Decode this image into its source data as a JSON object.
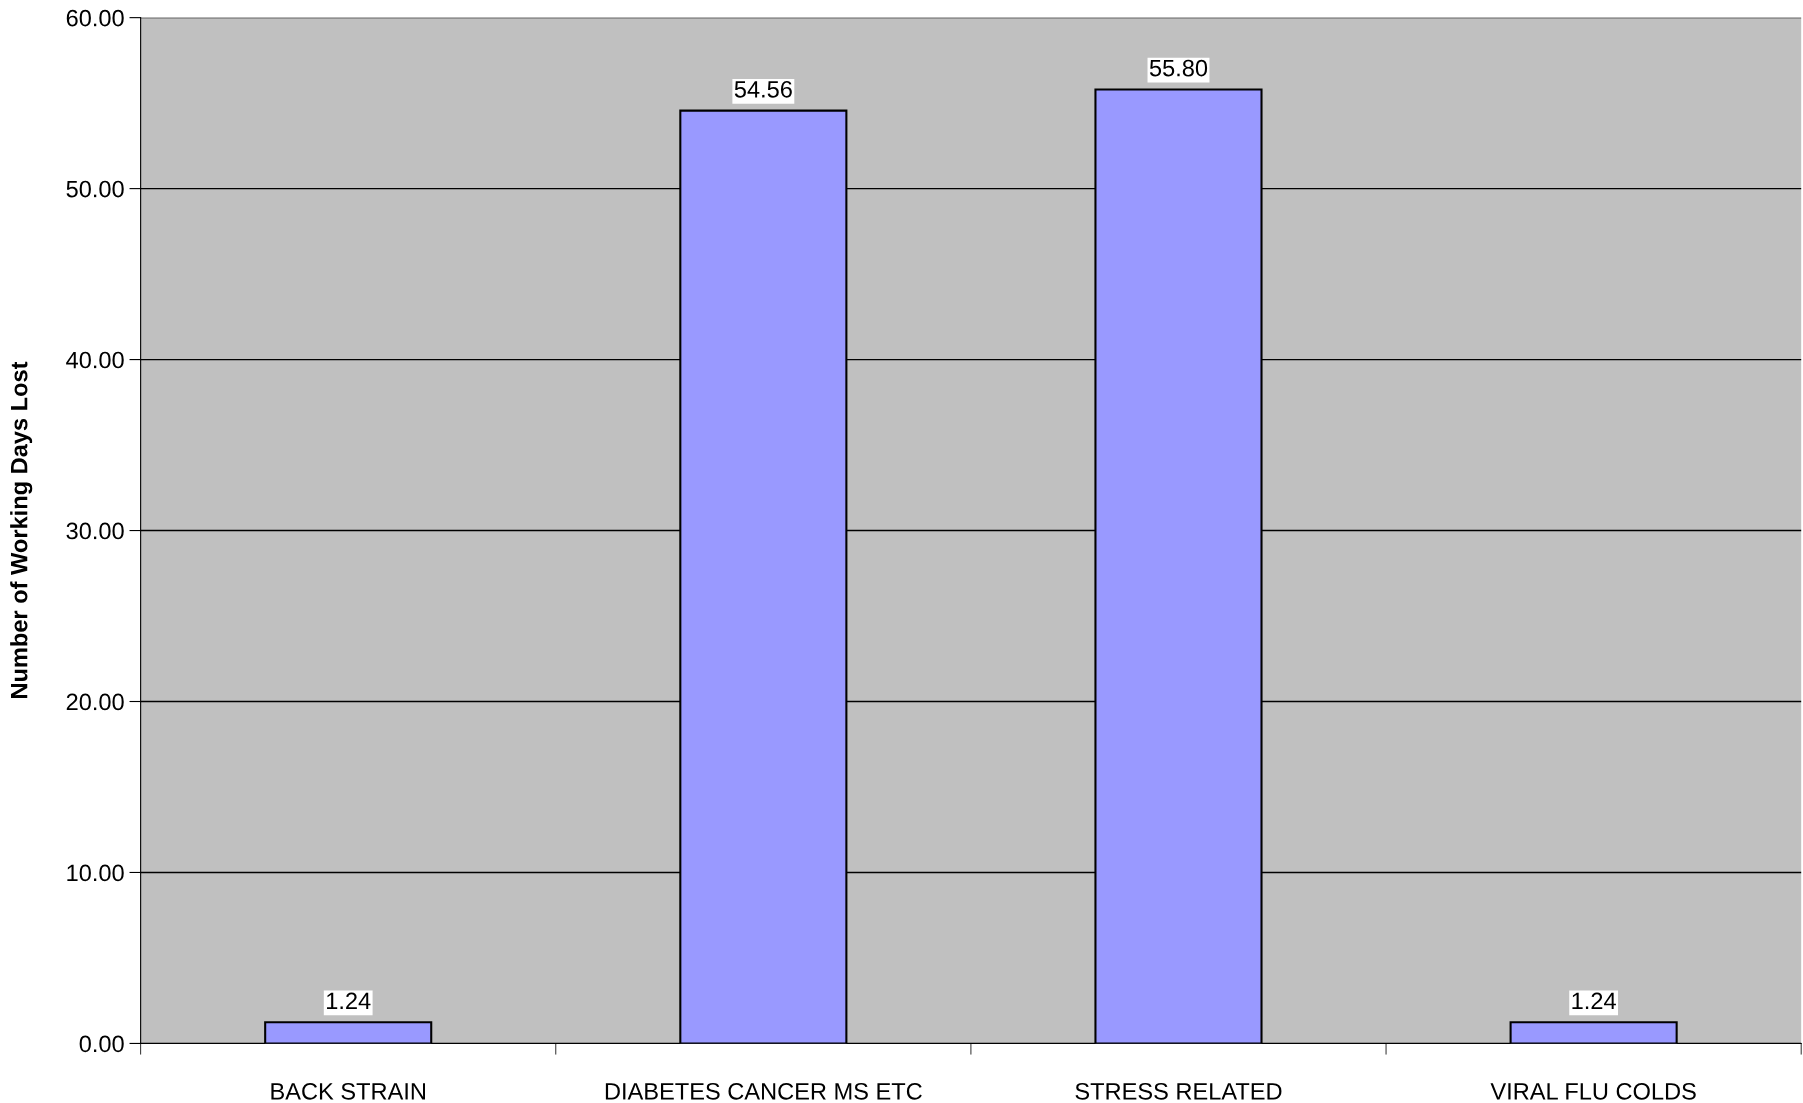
{
  "chart_data": {
    "type": "bar",
    "ylabel": "Number of Working Days Lost",
    "categories": [
      "BACK STRAIN",
      "DIABETES CANCER MS ETC",
      "STRESS RELATED",
      "VIRAL FLU COLDS"
    ],
    "values": [
      1.24,
      54.56,
      55.8,
      1.24
    ],
    "value_labels": [
      "1.24",
      "54.56",
      "55.80",
      "1.24"
    ],
    "color": "#9999ff",
    "ylim": [
      0,
      60
    ],
    "yticks": [
      {
        "value": 0,
        "label": "0.00"
      },
      {
        "value": 10,
        "label": "10.00"
      },
      {
        "value": 20,
        "label": "20.00"
      },
      {
        "value": 30,
        "label": "30.00"
      },
      {
        "value": 40,
        "label": "40.00"
      },
      {
        "value": 50,
        "label": "50.00"
      },
      {
        "value": 60,
        "label": "60.00"
      }
    ],
    "grid": "y"
  }
}
